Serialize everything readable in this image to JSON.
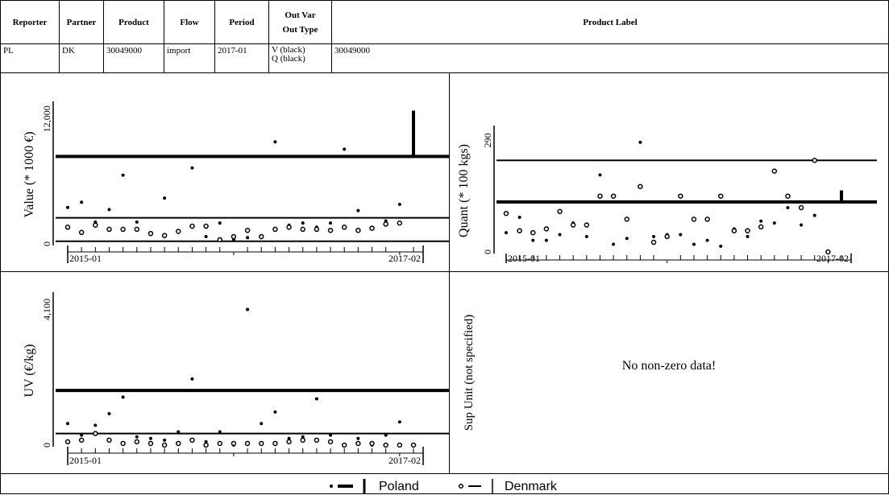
{
  "header": {
    "columns": [
      "Reporter",
      "Partner",
      "Product",
      "Flow",
      "Period",
      "Out Var",
      "Out Type",
      "Product Label"
    ],
    "row": {
      "reporter": "PL",
      "partner": "DK",
      "product": "30049000",
      "flow": "import",
      "period": "2017-01",
      "out_var": "V (black)",
      "out_type": "Q (black)",
      "product_label": "30049000"
    }
  },
  "no_data_text": "No non-zero data!",
  "sup_unit_label": "Sup Unit (not specified)",
  "legend": {
    "poland": "Poland",
    "denmark": "Denmark"
  },
  "chart_data": [
    {
      "type": "scatter",
      "ylabel": "Value (* 1000 €)",
      "xticks": [
        "2015-01",
        "2017-02"
      ],
      "yticks": [
        "0",
        "12,000"
      ],
      "ylim": [
        0,
        13300
      ],
      "hlines": {
        "poland": 8400,
        "denmark": 2500,
        "denmark_low": 250
      },
      "bar_last": {
        "x": 25,
        "from": 8400,
        "to": 12800
      },
      "series": [
        {
          "name": "Poland",
          "marker": "dot",
          "x": [
            0,
            1,
            2,
            3,
            4,
            5,
            6,
            7,
            8,
            9,
            10,
            11,
            12,
            13,
            14,
            15,
            16,
            17,
            18,
            19,
            20,
            21,
            22,
            23,
            24
          ],
          "y": [
            3500,
            4000,
            2100,
            3300,
            6600,
            2100,
            900,
            4400,
            1200,
            7300,
            700,
            2000,
            400,
            600,
            600,
            9800,
            1800,
            2000,
            1600,
            2000,
            9100,
            3200,
            1600,
            2200,
            3800
          ]
        },
        {
          "name": "Denmark",
          "marker": "circle",
          "x": [
            0,
            1,
            2,
            3,
            4,
            5,
            6,
            7,
            8,
            9,
            10,
            11,
            12,
            13,
            14,
            15,
            16,
            17,
            18,
            19,
            20,
            21,
            22,
            23,
            24
          ],
          "y": [
            1600,
            1100,
            1800,
            1400,
            1400,
            1400,
            1000,
            800,
            1200,
            1700,
            1700,
            400,
            700,
            1300,
            700,
            1400,
            1600,
            1400,
            1400,
            1300,
            1600,
            1300,
            1500,
            1900,
            2000
          ]
        }
      ]
    },
    {
      "type": "scatter",
      "ylabel": "Quant (* 100 kgs)",
      "xticks": [
        "2015-01",
        "2017-02"
      ],
      "yticks": [
        "0",
        "290"
      ],
      "ylim": [
        0,
        318
      ],
      "hlines": {
        "poland": 130,
        "denmark": 238
      },
      "bar_last": {
        "x": 25,
        "from": 130,
        "to": 160
      },
      "series": [
        {
          "name": "Poland",
          "marker": "dot",
          "x": [
            0,
            1,
            2,
            3,
            4,
            5,
            6,
            7,
            8,
            9,
            10,
            11,
            12,
            13,
            14,
            15,
            16,
            17,
            18,
            19,
            20,
            21,
            22,
            23,
            24
          ],
          "y": [
            50,
            90,
            30,
            30,
            45,
            75,
            40,
            200,
            20,
            35,
            285,
            40,
            45,
            45,
            20,
            30,
            15,
            60,
            40,
            80,
            75,
            115,
            70,
            95,
            0
          ]
        },
        {
          "name": "Denmark",
          "marker": "circle",
          "x": [
            0,
            1,
            2,
            3,
            4,
            5,
            6,
            7,
            8,
            9,
            10,
            11,
            12,
            13,
            14,
            15,
            16,
            17,
            18,
            19,
            20,
            21,
            22,
            23,
            24
          ],
          "y": [
            100,
            55,
            50,
            60,
            105,
            70,
            70,
            145,
            145,
            85,
            170,
            25,
            40,
            145,
            85,
            85,
            145,
            55,
            55,
            65,
            210,
            145,
            115,
            238,
            0
          ]
        }
      ]
    },
    {
      "type": "scatter",
      "ylabel": "UV (€/kg)",
      "xticks": [
        "2015-01",
        "2017-02"
      ],
      "yticks": [
        "0",
        "4,100"
      ],
      "ylim": [
        0,
        4500
      ],
      "hlines": {
        "poland": 1650,
        "denmark": 350
      },
      "series": [
        {
          "name": "Poland",
          "marker": "dot",
          "x": [
            0,
            1,
            2,
            3,
            4,
            5,
            6,
            7,
            8,
            9,
            10,
            11,
            12,
            13,
            14,
            15,
            16,
            17,
            18,
            19,
            20,
            21,
            22,
            23,
            24,
            25
          ],
          "y": [
            650,
            300,
            600,
            950,
            1450,
            250,
            200,
            150,
            400,
            2000,
            100,
            400,
            0,
            4100,
            650,
            1000,
            200,
            250,
            1400,
            300,
            0,
            200,
            0,
            300,
            700,
            0
          ]
        },
        {
          "name": "Denmark",
          "marker": "circle",
          "x": [
            0,
            1,
            2,
            3,
            4,
            5,
            6,
            7,
            8,
            9,
            10,
            11,
            12,
            13,
            14,
            15,
            16,
            17,
            18,
            19,
            20,
            21,
            22,
            23,
            24,
            25
          ],
          "y": [
            100,
            150,
            350,
            150,
            50,
            100,
            50,
            0,
            50,
            150,
            0,
            50,
            50,
            50,
            50,
            50,
            100,
            150,
            150,
            100,
            0,
            50,
            50,
            0,
            0,
            0
          ]
        }
      ]
    }
  ]
}
